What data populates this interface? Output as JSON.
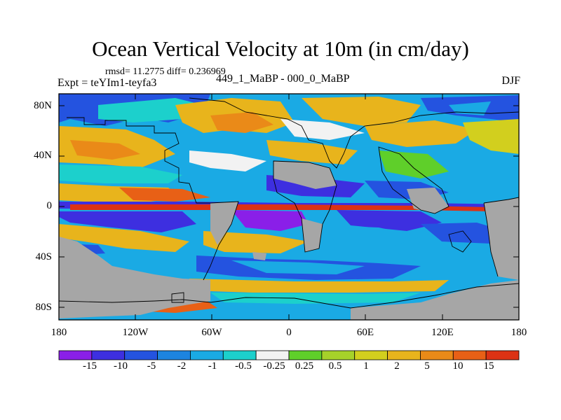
{
  "header": {
    "title": "Ocean Vertical Velocity at 10m (in cm/day)",
    "stats": "rmsd= 11.2775 diff= 0.236969",
    "experiment": "Expt = teYIm1-teyfa3",
    "difference": "449_1_MaBP - 000_0_MaBP",
    "season": "DJF"
  },
  "axes": {
    "lat_labels": [
      "80N",
      "40N",
      "0",
      "40S",
      "80S"
    ],
    "lon_labels": [
      "180",
      "120W",
      "60W",
      "0",
      "60E",
      "120E",
      "180"
    ]
  },
  "colorbar": {
    "colors": [
      "#8a1fe8",
      "#3d2fe0",
      "#2453e0",
      "#1d84e0",
      "#1aaae4",
      "#1cd0cc",
      "#f2f2f2",
      "#5fcf2a",
      "#a6d12a",
      "#d2cf1e",
      "#e8b41c",
      "#ea8a18",
      "#e86016",
      "#dc3214"
    ],
    "labels": [
      "-15",
      "-10",
      "-5",
      "-2",
      "-1",
      "-0.5",
      "-0.25",
      "0.25",
      "0.5",
      "1",
      "2",
      "5",
      "10",
      "15"
    ]
  },
  "map_colors": {
    "land": "#a6a6a6",
    "frame": "#000000"
  }
}
